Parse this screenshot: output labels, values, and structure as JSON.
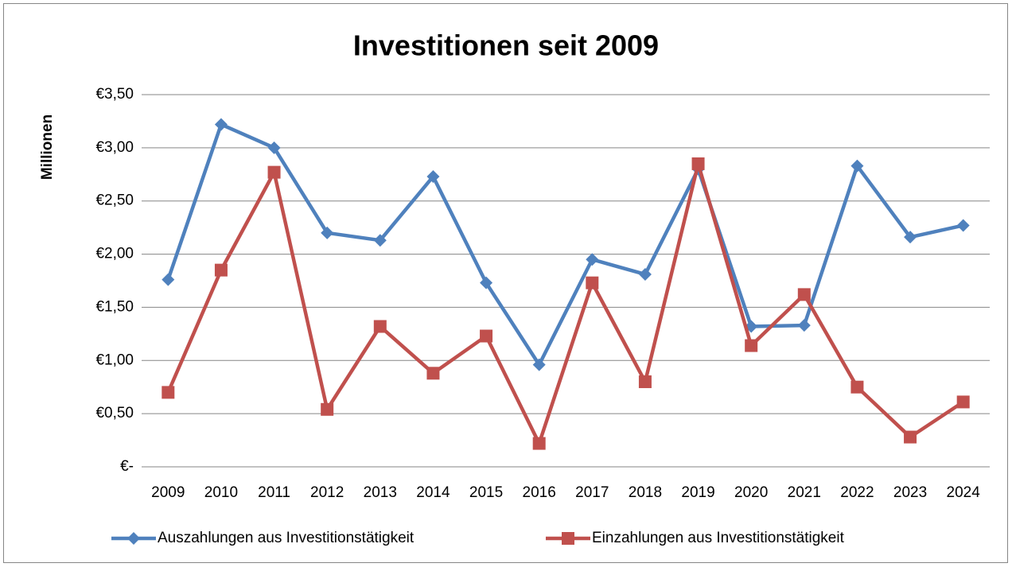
{
  "chart_data": {
    "type": "line",
    "title": "Investitionen seit 2009",
    "y_label": "Millionen",
    "categories": [
      "2009",
      "2010",
      "2011",
      "2012",
      "2013",
      "2014",
      "2015",
      "2016",
      "2017",
      "2018",
      "2019",
      "2020",
      "2021",
      "2022",
      "2023",
      "2024"
    ],
    "series": [
      {
        "name": "Auszahlungen aus Investitionstätigkeit",
        "color": "#4f81bd",
        "marker": "diamond",
        "values": [
          1.76,
          3.22,
          3.0,
          2.2,
          2.13,
          2.73,
          1.73,
          0.96,
          1.95,
          1.81,
          2.8,
          1.32,
          1.33,
          2.83,
          2.16,
          2.27
        ]
      },
      {
        "name": "Einzahlungen aus Investitionstätigkeit",
        "color": "#c0504d",
        "marker": "square",
        "values": [
          0.7,
          1.85,
          2.77,
          0.54,
          1.32,
          0.88,
          1.23,
          0.22,
          1.73,
          0.8,
          2.85,
          1.14,
          1.62,
          0.75,
          0.28,
          0.61
        ]
      }
    ],
    "ylim": [
      0,
      3.5
    ],
    "yticks": [
      {
        "value": 0,
        "label": "€-"
      },
      {
        "value": 0.5,
        "label": "€0,50"
      },
      {
        "value": 1,
        "label": "€1,00"
      },
      {
        "value": 1.5,
        "label": "€1,50"
      },
      {
        "value": 2,
        "label": "€2,00"
      },
      {
        "value": 2.5,
        "label": "€2,50"
      },
      {
        "value": 3,
        "label": "€3,00"
      },
      {
        "value": 3.5,
        "label": "€3,50"
      }
    ],
    "grid": true,
    "legend": "bottom"
  }
}
